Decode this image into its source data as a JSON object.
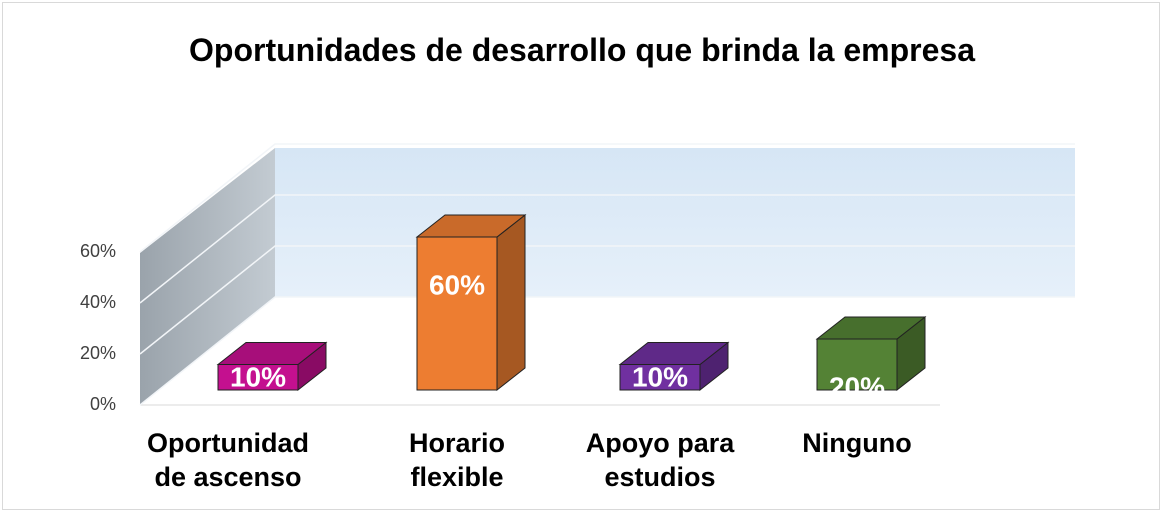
{
  "chart_data": {
    "type": "bar3d",
    "title": "Oportunidades de desarrollo que brinda la empresa",
    "categories": [
      "Oportunidad de ascenso",
      "Horario flexible",
      "Apoyo para estudios",
      "Ninguno"
    ],
    "values": [
      10,
      60,
      10,
      20
    ],
    "value_labels": [
      "10%",
      "60%",
      "10%",
      "20%"
    ],
    "colors": [
      "#c4108f",
      "#ed7d31",
      "#7030a0",
      "#548235"
    ],
    "ylim": [
      0,
      60
    ],
    "yticks": [
      {
        "value": 0,
        "label": "0%"
      },
      {
        "value": 20,
        "label": "20%"
      },
      {
        "value": 40,
        "label": "40%"
      },
      {
        "value": 60,
        "label": "60%"
      }
    ],
    "grid": true
  }
}
